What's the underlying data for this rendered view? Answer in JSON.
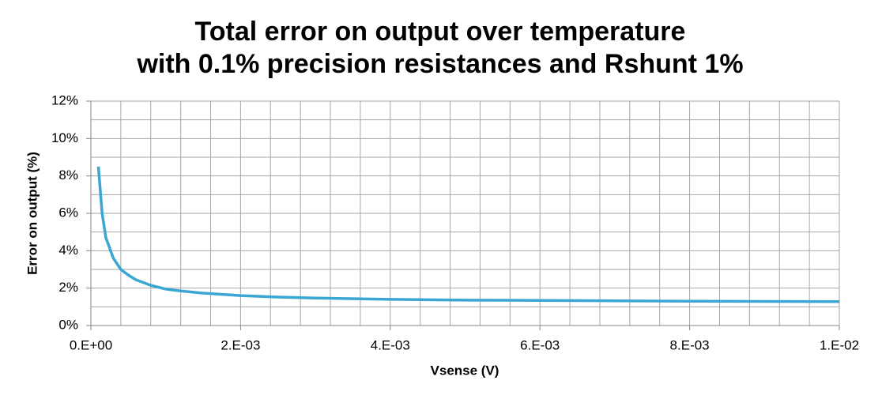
{
  "chart_data": {
    "type": "line",
    "title": [
      "Total error on output over temperature",
      "with 0.1% precision resistances and Rshunt 1%"
    ],
    "x_label": "Vsense (V)",
    "y_label": "Error on output (%)",
    "grid": true,
    "xlim": [
      0,
      0.01
    ],
    "ylim": [
      0,
      12
    ],
    "xticks": [
      {
        "value": 0,
        "label": "0.E+00"
      },
      {
        "value": 0.002,
        "label": "2.E-03"
      },
      {
        "value": 0.004,
        "label": "4.E-03"
      },
      {
        "value": 0.006,
        "label": "6.E-03"
      },
      {
        "value": 0.008,
        "label": "8.E-03"
      },
      {
        "value": 0.01,
        "label": "1.E-02"
      }
    ],
    "yticks": [
      {
        "value": 0,
        "label": "0%"
      },
      {
        "value": 2,
        "label": "2%"
      },
      {
        "value": 4,
        "label": "4%"
      },
      {
        "value": 6,
        "label": "6%"
      },
      {
        "value": 8,
        "label": "8%"
      },
      {
        "value": 10,
        "label": "10%"
      },
      {
        "value": 12,
        "label": "12%"
      }
    ],
    "xgrid": [
      0,
      0.0004,
      0.0008,
      0.0012,
      0.0016,
      0.002,
      0.0024,
      0.0028,
      0.0032,
      0.0036,
      0.004,
      0.0044,
      0.0048,
      0.0052,
      0.0056,
      0.006,
      0.0064,
      0.0068,
      0.0072,
      0.0076,
      0.008,
      0.0084,
      0.0088,
      0.0092,
      0.0096,
      0.01
    ],
    "ygrid": [
      0,
      1,
      2,
      3,
      4,
      5,
      6,
      7,
      8,
      9,
      10,
      11,
      12
    ],
    "x": [
      0.0001,
      0.00015,
      0.0002,
      0.0003,
      0.0004,
      0.0005,
      0.0006,
      0.0008,
      0.001,
      0.0012,
      0.0015,
      0.002,
      0.0025,
      0.003,
      0.004,
      0.005,
      0.006,
      0.007,
      0.008,
      0.009,
      0.01
    ],
    "series": [
      {
        "color": "#3aa6d4",
        "values": [
          8.5,
          6.0,
          4.7,
          3.6,
          3.0,
          2.7,
          2.45,
          2.15,
          1.95,
          1.85,
          1.73,
          1.6,
          1.52,
          1.47,
          1.4,
          1.36,
          1.34,
          1.32,
          1.3,
          1.29,
          1.28
        ]
      }
    ]
  }
}
